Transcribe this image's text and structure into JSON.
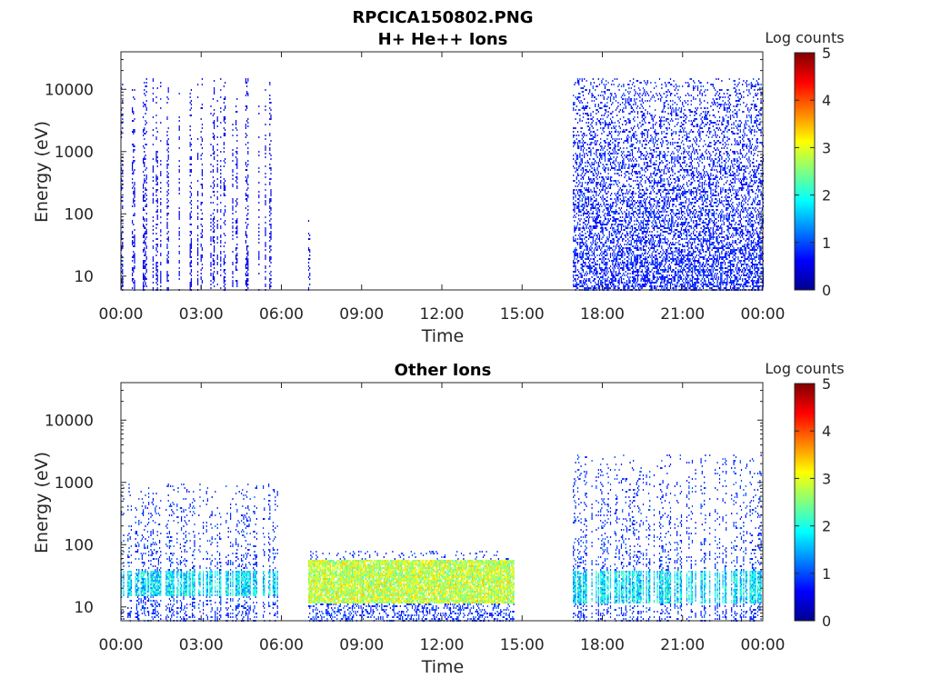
{
  "figure": {
    "title": "RPCICA150802.PNG",
    "colorbar_colors": [
      "#00008f",
      "#0000ff",
      "#0080ff",
      "#00ffff",
      "#80ff80",
      "#ffff00",
      "#ff8000",
      "#ff0000",
      "#800000"
    ]
  },
  "chart_data": [
    {
      "type": "heatmap",
      "title": "H+ He++ Ions",
      "xlabel": "Time",
      "ylabel": "Energy (eV)",
      "x_ticks": [
        "00:00",
        "03:00",
        "06:00",
        "09:00",
        "12:00",
        "15:00",
        "18:00",
        "21:00",
        "00:00"
      ],
      "xlim_hours": [
        0,
        24
      ],
      "y_scale": "log",
      "ylim_eV": [
        6,
        40000
      ],
      "y_ticks": [
        {
          "value": 10,
          "label": "10"
        },
        {
          "value": 100,
          "label": "100"
        },
        {
          "value": 1000,
          "label": "1000"
        },
        {
          "value": 10000,
          "label": "10000"
        }
      ],
      "colorbar": {
        "title": "Log counts",
        "range": [
          0,
          5
        ],
        "ticks": [
          "0",
          "1",
          "2",
          "3",
          "4",
          "5"
        ]
      },
      "data_regions": [
        {
          "start_hour": 0.0,
          "end_hour": 5.9,
          "pattern": "periodic spikes",
          "emax_eV": 16000,
          "level": 0.3
        },
        {
          "start_hour": 7.0,
          "end_hour": 7.05,
          "pattern": "single spike",
          "emax_eV": 80,
          "level": 0.3
        },
        {
          "start_hour": 16.9,
          "end_hour": 24.0,
          "pattern": "dense",
          "emax_eV": 16000,
          "level": 0.5
        }
      ]
    },
    {
      "type": "heatmap",
      "title": "Other Ions",
      "xlabel": "Time",
      "ylabel": "Energy (eV)",
      "x_ticks": [
        "00:00",
        "03:00",
        "06:00",
        "09:00",
        "12:00",
        "15:00",
        "18:00",
        "21:00",
        "00:00"
      ],
      "xlim_hours": [
        0,
        24
      ],
      "y_scale": "log",
      "ylim_eV": [
        6,
        40000
      ],
      "y_ticks": [
        {
          "value": 10,
          "label": "10"
        },
        {
          "value": 100,
          "label": "100"
        },
        {
          "value": 1000,
          "label": "1000"
        },
        {
          "value": 10000,
          "label": "10000"
        }
      ],
      "colorbar": {
        "title": "Log counts",
        "range": [
          0,
          5
        ],
        "ticks": [
          "0",
          "1",
          "2",
          "3",
          "4",
          "5"
        ]
      },
      "data_regions": [
        {
          "start_hour": 0.0,
          "end_hour": 5.9,
          "pattern": "sparse spikes with low-energy band",
          "emax_eV": 1000,
          "band_eV": [
            15,
            40
          ],
          "level": 1.5
        },
        {
          "start_hour": 7.0,
          "end_hour": 14.7,
          "pattern": "dense low-energy band",
          "emax_eV": 80,
          "band_eV": [
            12,
            60
          ],
          "level": 2.6
        },
        {
          "start_hour": 16.9,
          "end_hour": 24.0,
          "pattern": "sparse with low-energy band",
          "emax_eV": 3000,
          "band_eV": [
            12,
            40
          ],
          "level": 1.5
        }
      ]
    }
  ]
}
